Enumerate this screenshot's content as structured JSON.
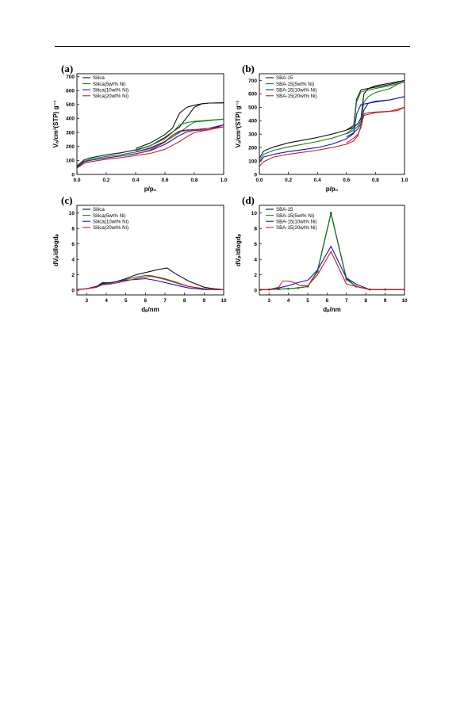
{
  "colors": {
    "black": "#111111",
    "green": "#1e7d1e",
    "blue": "#1414b4",
    "red": "#cc1c1c",
    "gray": "#888888"
  },
  "chart_data": [
    {
      "panel": "(a)",
      "type": "line",
      "xlabel": "p/p₀",
      "ylabel": "Vₐ/cm³(STP) g⁻¹",
      "xlim": [
        0,
        1
      ],
      "ylim": [
        0,
        720
      ],
      "xticks": [
        "0.0",
        "0.2",
        "0.4",
        "0.6",
        "0.8",
        "1.0"
      ],
      "yticks": [
        "0",
        "100",
        "200",
        "300",
        "400",
        "500",
        "600",
        "700"
      ],
      "legend_position": "top-left",
      "series": [
        {
          "name": "Silica",
          "color": "black",
          "x": [
            0,
            0.05,
            0.1,
            0.2,
            0.3,
            0.4,
            0.5,
            0.6,
            0.7,
            0.75,
            0.8,
            0.85,
            0.9,
            0.95,
            1.0
          ],
          "y": [
            60,
            105,
            120,
            140,
            155,
            175,
            205,
            265,
            340,
            410,
            480,
            505,
            510,
            510,
            512
          ],
          "x2": [
            1.0,
            0.9,
            0.85,
            0.8,
            0.75,
            0.7,
            0.65,
            0.6,
            0.5,
            0.4
          ],
          "y2": [
            512,
            510,
            505,
            495,
            480,
            440,
            330,
            285,
            225,
            185
          ]
        },
        {
          "name": "Silica(5wt% Ni)",
          "color": "green",
          "x": [
            0,
            0.05,
            0.1,
            0.2,
            0.3,
            0.4,
            0.5,
            0.6,
            0.7,
            0.75,
            0.8,
            0.9,
            1.0
          ],
          "y": [
            55,
            95,
            110,
            128,
            142,
            160,
            185,
            235,
            300,
            340,
            375,
            385,
            395
          ],
          "x2": [
            1.0,
            0.9,
            0.8,
            0.75,
            0.7,
            0.65,
            0.6,
            0.5,
            0.4
          ],
          "y2": [
            395,
            388,
            380,
            370,
            355,
            300,
            255,
            205,
            170
          ]
        },
        {
          "name": "Silica(10wt% Ni)",
          "color": "blue",
          "x": [
            0,
            0.05,
            0.1,
            0.2,
            0.3,
            0.4,
            0.5,
            0.6,
            0.7,
            0.75,
            0.8,
            0.9,
            1.0
          ],
          "y": [
            50,
            90,
            102,
            118,
            132,
            148,
            170,
            215,
            280,
            305,
            315,
            320,
            355
          ],
          "x2": [
            1.0,
            0.9,
            0.8,
            0.75,
            0.7,
            0.65,
            0.6,
            0.5,
            0.4
          ],
          "y2": [
            355,
            330,
            320,
            318,
            310,
            280,
            235,
            190,
            160
          ]
        },
        {
          "name": "Silica(20wt% Ni)",
          "color": "red",
          "x": [
            0,
            0.05,
            0.1,
            0.2,
            0.3,
            0.4,
            0.5,
            0.6,
            0.7,
            0.75,
            0.8,
            0.9,
            1.0
          ],
          "y": [
            45,
            80,
            92,
            108,
            120,
            135,
            150,
            180,
            235,
            270,
            300,
            320,
            340
          ],
          "x2": [
            1.0,
            0.9,
            0.8,
            0.75,
            0.7,
            0.65,
            0.6,
            0.5,
            0.4
          ],
          "y2": [
            340,
            330,
            320,
            315,
            305,
            280,
            230,
            175,
            145
          ]
        }
      ]
    },
    {
      "panel": "(b)",
      "type": "line",
      "xlabel": "p/p₀",
      "ylabel": "Vₐ/cm³(STP) g⁻¹",
      "xlim": [
        0,
        1
      ],
      "ylim": [
        0,
        750
      ],
      "xticks": [
        "0.0",
        "0.2",
        "0.4",
        "0.6",
        "0.8",
        "1.0"
      ],
      "yticks": [
        "0",
        "100",
        "200",
        "300",
        "400",
        "500",
        "600",
        "700"
      ],
      "legend_position": "top-left",
      "series": [
        {
          "name": "SBA-15",
          "color": "black",
          "x": [
            0,
            0.03,
            0.1,
            0.2,
            0.3,
            0.4,
            0.5,
            0.6,
            0.65,
            0.67,
            0.7,
            0.8,
            0.9,
            1.0
          ],
          "y": [
            120,
            175,
            205,
            235,
            255,
            275,
            300,
            330,
            365,
            560,
            630,
            650,
            670,
            700
          ],
          "x2": [
            1.0,
            0.9,
            0.8,
            0.75,
            0.72,
            0.7,
            0.68,
            0.65,
            0.6
          ],
          "y2": [
            700,
            680,
            660,
            640,
            600,
            420,
            380,
            350,
            330
          ]
        },
        {
          "name": "SBA-15(5wt% Ni)",
          "color": "green",
          "x": [
            0,
            0.03,
            0.1,
            0.2,
            0.3,
            0.4,
            0.5,
            0.6,
            0.65,
            0.67,
            0.7,
            0.8,
            0.9,
            1.0
          ],
          "y": [
            100,
            150,
            180,
            205,
            225,
            245,
            270,
            305,
            345,
            540,
            615,
            640,
            660,
            690
          ],
          "x2": [
            1.0,
            0.95,
            0.9,
            0.8,
            0.75,
            0.72,
            0.7,
            0.68,
            0.65,
            0.6
          ],
          "y2": [
            690,
            670,
            640,
            610,
            580,
            540,
            400,
            360,
            330,
            300
          ]
        },
        {
          "name": "SBA-15(10wt% Ni)",
          "color": "blue",
          "x": [
            0,
            0.03,
            0.1,
            0.2,
            0.3,
            0.4,
            0.5,
            0.6,
            0.65,
            0.67,
            0.7,
            0.8,
            0.9,
            1.0
          ],
          "y": [
            90,
            130,
            150,
            170,
            185,
            200,
            225,
            265,
            305,
            450,
            520,
            540,
            555,
            580
          ],
          "x2": [
            1.0,
            0.9,
            0.8,
            0.75,
            0.72,
            0.7,
            0.68,
            0.65,
            0.6
          ],
          "y2": [
            580,
            555,
            545,
            530,
            480,
            380,
            340,
            310,
            280
          ]
        },
        {
          "name": "SBA-15(20wt% Ni)",
          "color": "red",
          "x": [
            0,
            0.03,
            0.1,
            0.2,
            0.3,
            0.4,
            0.5,
            0.6,
            0.65,
            0.68,
            0.72,
            0.8,
            0.9,
            1.0
          ],
          "y": [
            60,
            95,
            130,
            150,
            165,
            180,
            200,
            225,
            250,
            290,
            440,
            460,
            470,
            500
          ],
          "x2": [
            1.0,
            0.95,
            0.9,
            0.8,
            0.75,
            0.72,
            0.7,
            0.68,
            0.65,
            0.6
          ],
          "y2": [
            500,
            475,
            470,
            465,
            460,
            450,
            350,
            300,
            270,
            235
          ]
        }
      ]
    },
    {
      "panel": "(c)",
      "type": "line",
      "xlabel": "dₚ/nm",
      "ylabel": "dVₚ/dlogdₚ",
      "xlim": [
        2.5,
        10
      ],
      "ylim": [
        -0.6,
        11
      ],
      "xticks": [
        "3",
        "4",
        "5",
        "6",
        "7",
        "8",
        "9",
        "10"
      ],
      "yticks": [
        "0",
        "2",
        "4",
        "6",
        "8",
        "10"
      ],
      "legend_position": "top-left",
      "series": [
        {
          "name": "Silica",
          "color": "black",
          "x": [
            2.5,
            3,
            3.5,
            3.8,
            4.2,
            5,
            5.5,
            6,
            6.5,
            7.1,
            7.5,
            8.2,
            9,
            9.5,
            10
          ],
          "y": [
            0.1,
            0.2,
            0.5,
            0.9,
            0.9,
            1.5,
            2,
            2.3,
            2.6,
            2.9,
            2.2,
            1.2,
            0.4,
            0.2,
            0.1
          ]
        },
        {
          "name": "Silica(5wt% Ni)",
          "color": "green",
          "x": [
            2.5,
            3,
            3.5,
            3.8,
            4.2,
            5,
            5.5,
            6,
            6.3,
            7,
            7.5,
            8.2,
            9,
            9.5,
            10
          ],
          "y": [
            0.1,
            0.2,
            0.4,
            0.8,
            0.9,
            1.4,
            1.7,
            1.9,
            1.9,
            1.5,
            1.1,
            0.5,
            0.2,
            0.1,
            0.1
          ]
        },
        {
          "name": "Silica(10wt% Ni)",
          "color": "blue",
          "x": [
            2.5,
            3,
            3.5,
            3.8,
            4.2,
            5,
            5.5,
            6,
            6.5,
            7,
            7.5,
            8.2,
            9,
            9.5,
            10
          ],
          "y": [
            0.1,
            0.2,
            0.5,
            1.0,
            1.0,
            1.3,
            1.4,
            1.5,
            1.3,
            1.0,
            0.7,
            0.3,
            0.1,
            0.1,
            0.1
          ]
        },
        {
          "name": "Silica(20wt% Ni)",
          "color": "red",
          "x": [
            2.5,
            3,
            3.5,
            3.8,
            4.2,
            5,
            5.5,
            6,
            6.3,
            7,
            7.5,
            8.2,
            9,
            9.5,
            10
          ],
          "y": [
            0.1,
            0.2,
            0.4,
            0.7,
            0.8,
            1.2,
            1.5,
            1.7,
            1.8,
            1.4,
            1.0,
            0.5,
            0.2,
            0.1,
            0.1
          ]
        }
      ]
    },
    {
      "panel": "(d)",
      "type": "line",
      "xlabel": "dₚ/nm",
      "ylabel": "dVₚ/dlogdₚ",
      "xlim": [
        2.5,
        10
      ],
      "ylim": [
        -0.6,
        11
      ],
      "xticks": [
        "3",
        "4",
        "5",
        "6",
        "7",
        "8",
        "9",
        "10"
      ],
      "yticks": [
        "0",
        "2",
        "4",
        "6",
        "8",
        "10"
      ],
      "legend_position": "top-left",
      "series": [
        {
          "name": "SBA-15",
          "color": "black",
          "x": [
            2.5,
            3,
            3.5,
            4,
            4.5,
            5,
            5.5,
            6.2,
            7,
            7.5,
            8.2,
            9,
            10
          ],
          "y": [
            0.1,
            0.1,
            0.15,
            0.2,
            0.3,
            0.5,
            2.5,
            10.0,
            1.5,
            0.5,
            0.1,
            0.1,
            0.1
          ]
        },
        {
          "name": "SBA-15(5wt% Ni)",
          "color": "green",
          "x": [
            2.5,
            3,
            3.5,
            4,
            4.5,
            5,
            5.5,
            6.2,
            7,
            7.5,
            8.2,
            9,
            10
          ],
          "y": [
            0.1,
            0.1,
            0.15,
            0.2,
            0.3,
            0.5,
            2.4,
            9.9,
            1.4,
            0.5,
            0.1,
            0.1,
            0.1
          ]
        },
        {
          "name": "SBA-15(10wt% Ni)",
          "color": "blue",
          "x": [
            2.5,
            3,
            3.5,
            4,
            4.5,
            5,
            5.5,
            6.2,
            7,
            7.5,
            8.2,
            9,
            10
          ],
          "y": [
            0.1,
            0.1,
            0.3,
            0.6,
            1.0,
            1.3,
            2.6,
            5.7,
            1.6,
            0.8,
            0.1,
            0.1,
            0.1
          ]
        },
        {
          "name": "SBA-15(20wt% Ni)",
          "color": "red",
          "x": [
            2.5,
            3,
            3.5,
            3.7,
            4,
            4.3,
            4.6,
            5,
            5.5,
            6.2,
            7,
            7.5,
            8.2,
            9,
            10
          ],
          "y": [
            0.1,
            0.1,
            0.4,
            1.2,
            1.2,
            1.0,
            0.6,
            0.6,
            2.0,
            5.0,
            0.8,
            0.5,
            0.1,
            0.1,
            0.1
          ]
        }
      ]
    }
  ]
}
